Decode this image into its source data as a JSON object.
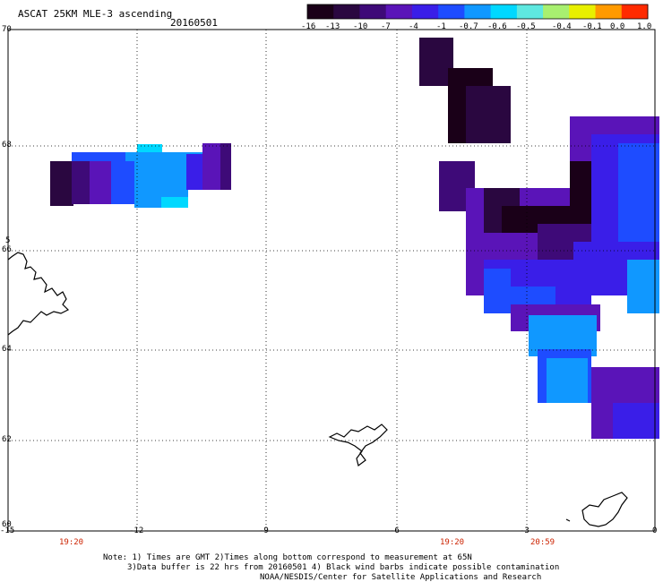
{
  "header": {
    "title": "ASCAT 25KM MLE-3 ascending",
    "date": "20160501"
  },
  "colorbar": {
    "tick_labels": [
      "-16",
      "-13",
      "-10",
      "-7",
      "-4",
      "-1",
      "-0.7",
      "-0.6",
      "-0.5",
      "-0.4",
      "-0.1",
      "0.0",
      "1.0"
    ],
    "colors": [
      "#1a0018",
      "#2a0740",
      "#3e0a78",
      "#5a14b8",
      "#3a1ee8",
      "#1e4cff",
      "#1098ff",
      "#00d8ff",
      "#5ee8e0",
      "#a8f070",
      "#e8f000",
      "#ff9a00",
      "#ff2a00"
    ]
  },
  "map": {
    "lon_labels": [
      "-15",
      "-12",
      "-9",
      "-6",
      "-3",
      "0"
    ],
    "lat_labels": [
      "70",
      "68",
      "66",
      "64",
      "62",
      "60"
    ],
    "left_edge_label": "5"
  },
  "time_labels": [
    "19:20",
    "19:20",
    "20:59"
  ],
  "notes": {
    "line1": "Note: 1) Times are GMT 2)Times along bottom correspond to measurement at 65N",
    "line2": "3)Data buffer is 22 hrs from 20160501 4) Black wind barbs indicate possible contamination",
    "line3": "NOAA/NESDIS/Center for Satellite Applications and Research"
  }
}
